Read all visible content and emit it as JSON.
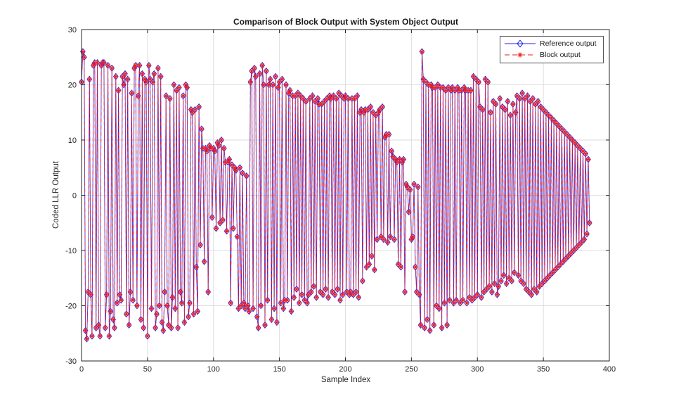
{
  "chart_data": {
    "type": "line",
    "title": "Comparison of Block Output with System Object Output",
    "xlabel": "Sample Index",
    "ylabel": "Coded LLR Output",
    "xlim": [
      0,
      400
    ],
    "ylim": [
      -30,
      30
    ],
    "x_ticks": [
      0,
      50,
      100,
      150,
      200,
      250,
      300,
      350,
      400
    ],
    "y_ticks": [
      -30,
      -20,
      -10,
      0,
      10,
      20,
      30
    ],
    "grid": true,
    "legend_position": "top-right",
    "x_start": 0,
    "x_step": 1,
    "series": [
      {
        "name": "Reference output",
        "color": "#2222EB",
        "line_style": "solid",
        "marker": "diamond",
        "values": [
          20.5,
          26,
          25,
          -24.5,
          -26,
          -17.5,
          21,
          -18,
          -25.5,
          23.5,
          24,
          -24,
          24,
          -23.5,
          -25.5,
          23.5,
          24,
          24,
          -24,
          -18,
          23.5,
          -25.5,
          -21,
          23,
          -22.5,
          -24,
          21.5,
          -19.5,
          19,
          -18,
          -19,
          21.5,
          20,
          22,
          -21.5,
          21,
          -23.5,
          -17.5,
          18.5,
          -19,
          23,
          23.5,
          -20,
          18,
          23.5,
          -22.5,
          22,
          -24,
          21,
          20.5,
          -25.5,
          23.5,
          21,
          -20.5,
          20.5,
          22,
          -24,
          -21.5,
          23,
          -20,
          21.5,
          -23,
          -24.5,
          -17.5,
          18,
          -20,
          -23.5,
          17.5,
          -24,
          -18.5,
          20,
          -20.5,
          19,
          -24,
          19.5,
          -17.5,
          -19.5,
          18,
          -23,
          20,
          19.5,
          -22,
          -19.5,
          15.5,
          15,
          -21.5,
          15.5,
          -13,
          -21,
          16,
          -9,
          12,
          8.5,
          -12,
          8.5,
          8,
          -17.5,
          9,
          8.5,
          -4,
          8.5,
          8,
          -6,
          9.5,
          9,
          -5,
          10,
          -4.5,
          8.5,
          6,
          -6.5,
          6,
          6.5,
          -19.5,
          5.5,
          -6,
          5,
          4.5,
          -7.5,
          -20.5,
          5,
          -20,
          4,
          -19.5,
          -20.5,
          3.5,
          -20,
          -21,
          20.5,
          22.5,
          -20.5,
          23,
          21.5,
          -22,
          -24,
          22,
          -20,
          23.5,
          20,
          -23.5,
          22.5,
          -19,
          20,
          21,
          -22.5,
          20,
          -20.5,
          21.5,
          -23,
          19.5,
          20.5,
          -19.5,
          21,
          -20.5,
          -19,
          20,
          -19,
          18.5,
          19,
          -21,
          18,
          -18.5,
          18,
          -17,
          18.5,
          -19.5,
          18,
          -18,
          17.5,
          -19,
          17,
          -19.5,
          -18,
          17.5,
          -17.5,
          18,
          -16.5,
          17,
          -18.5,
          17.5,
          16.5,
          -17.5,
          16.5,
          -18,
          17,
          -17,
          17.5,
          -18.5,
          18,
          17.5,
          -17.5,
          18,
          -18,
          17.5,
          -17,
          18.5,
          -19,
          18,
          -18,
          17.5,
          18,
          -17.5,
          17.5,
          -18,
          -17.5,
          17.5,
          -18,
          17.5,
          -17.5,
          18,
          -18.5,
          15,
          15.5,
          -15.5,
          15,
          15.5,
          -13,
          15.5,
          -12.5,
          16,
          -11,
          15,
          -13.5,
          14.5,
          -8,
          15,
          15.5,
          -7.5,
          16,
          -8,
          10.5,
          11,
          -8.5,
          11,
          -7.5,
          8,
          7,
          -8,
          6.5,
          6,
          -12.5,
          6.5,
          -13,
          6,
          6.5,
          -17.5,
          2,
          1.5,
          -3,
          1,
          -8,
          -7.5,
          2,
          -13,
          -17.5,
          1.5,
          -18,
          -23.5,
          26,
          21,
          -24,
          20.5,
          -22.5,
          20,
          -24.5,
          20,
          19.5,
          -23.5,
          19.5,
          -20,
          20,
          -20.5,
          19.5,
          -24,
          19.5,
          -19.5,
          19,
          -23.5,
          19.5,
          -19,
          19,
          19.5,
          -19.5,
          19,
          -19,
          19.5,
          19,
          -19.5,
          19,
          -19,
          19.5,
          19,
          -19.5,
          19,
          -18.5,
          19,
          -19,
          21.5,
          -18.5,
          21,
          -18,
          20.5,
          16,
          -18.5,
          15.5,
          -17.5,
          21,
          -17,
          20.5,
          -16.5,
          15,
          -17.5,
          17,
          -16,
          16.5,
          -18,
          -16.5,
          17.5,
          -15.5,
          16,
          -14.5,
          15.5,
          -16,
          17,
          -15,
          14.5,
          -15.5,
          16.5,
          -14,
          15,
          18,
          -14.5,
          17.5,
          -15.5,
          18.5,
          -16,
          17.5,
          -17,
          18,
          -17.5,
          17,
          -18,
          17.5,
          -17,
          16.5,
          -17.5,
          17,
          -16.5,
          16,
          -16,
          15.5,
          -15.5,
          15,
          -15,
          14.5,
          -14.5,
          14,
          -14,
          13.5,
          -13.5,
          13,
          -13,
          12.5,
          -12.5,
          12,
          -12,
          11.5,
          -11.5,
          11,
          -11,
          10.5,
          -10.5,
          10,
          -10,
          9.5,
          -9.5,
          9,
          -9,
          8.5,
          -8.5,
          8,
          -8,
          7.5,
          -7,
          6.5,
          -5
        ]
      },
      {
        "name": "Block output",
        "color": "#EE1C1C",
        "line_style": "dashed",
        "marker": "asterisk",
        "values_same_as": "Reference output"
      }
    ]
  },
  "styles": {
    "background": "#FFFFFF",
    "axis_color": "#262626",
    "grid_color": "#DEDEDE",
    "text_color": "#262626",
    "reference_color": "#2222EB",
    "block_color": "#EE1C1C"
  }
}
